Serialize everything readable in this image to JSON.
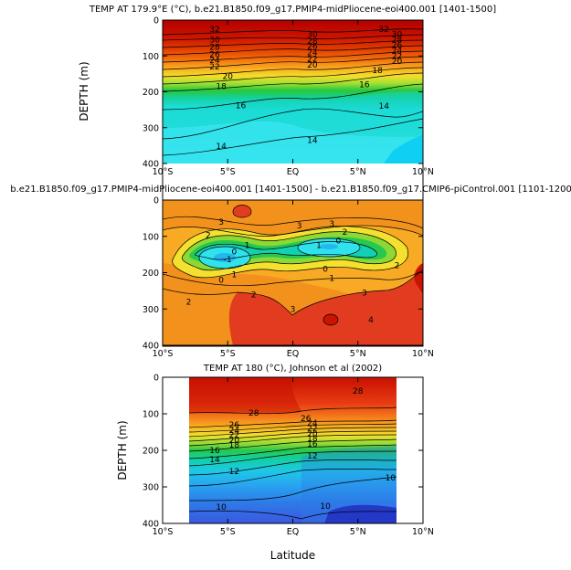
{
  "chart_data": [
    {
      "type": "contour",
      "title": "TEMP AT 179.9°E (°C), b.e21.B1850.f09_g17.PMIP4-midPliocene-eoi400.001 [1401-1500]",
      "xlabel": "",
      "ylabel": "DEPTH (m)",
      "x_ticks": [
        "10°S",
        "5°S",
        "EQ",
        "5°N",
        "10°N"
      ],
      "y_ticks": [
        "0",
        "100",
        "200",
        "300",
        "400"
      ],
      "xlim": [
        -10,
        10
      ],
      "ylim": [
        400,
        0
      ],
      "contour_labels": [
        {
          "text": "32",
          "x": -6.0,
          "y": 25
        },
        {
          "text": "32",
          "x": 7.0,
          "y": 25
        },
        {
          "text": "30",
          "x": -6.0,
          "y": 55
        },
        {
          "text": "30",
          "x": 1.5,
          "y": 40
        },
        {
          "text": "30",
          "x": 8.0,
          "y": 40
        },
        {
          "text": "28",
          "x": -6.0,
          "y": 75
        },
        {
          "text": "28",
          "x": 1.5,
          "y": 58
        },
        {
          "text": "28",
          "x": 8.0,
          "y": 55
        },
        {
          "text": "26",
          "x": -6.0,
          "y": 95
        },
        {
          "text": "26",
          "x": 1.5,
          "y": 72
        },
        {
          "text": "26",
          "x": 8.0,
          "y": 70
        },
        {
          "text": "24",
          "x": -6.0,
          "y": 112
        },
        {
          "text": "24",
          "x": 1.5,
          "y": 90
        },
        {
          "text": "24",
          "x": 8.0,
          "y": 85
        },
        {
          "text": "22",
          "x": -6.0,
          "y": 130
        },
        {
          "text": "22",
          "x": 1.5,
          "y": 108
        },
        {
          "text": "22",
          "x": 8.0,
          "y": 100
        },
        {
          "text": "20",
          "x": -5.0,
          "y": 157
        },
        {
          "text": "20",
          "x": 1.5,
          "y": 125
        },
        {
          "text": "20",
          "x": 8.0,
          "y": 115
        },
        {
          "text": "18",
          "x": -5.5,
          "y": 185
        },
        {
          "text": "18",
          "x": 6.5,
          "y": 140
        },
        {
          "text": "16",
          "x": -4.0,
          "y": 238
        },
        {
          "text": "16",
          "x": 5.5,
          "y": 180
        },
        {
          "text": "14",
          "x": -5.5,
          "y": 352
        },
        {
          "text": "14",
          "x": 1.5,
          "y": 335
        },
        {
          "text": "14",
          "x": 7.0,
          "y": 240
        }
      ]
    },
    {
      "type": "contour",
      "title": "b.e21.B1850.f09_g17.PMIP4-midPliocene-eoi400.001 [1401-1500] - b.e21.B1850.f09_g17.CMIP6-piControl.001 [1101-1200]",
      "xlabel": "",
      "ylabel": "",
      "x_ticks": [
        "10°S",
        "5°S",
        "EQ",
        "5°N",
        "10°N"
      ],
      "y_ticks": [
        "0",
        "100",
        "200",
        "300",
        "400"
      ],
      "xlim": [
        -10,
        10
      ],
      "ylim": [
        400,
        0
      ],
      "contour_labels": [
        {
          "text": "3",
          "x": -5.5,
          "y": 60
        },
        {
          "text": "3",
          "x": 0.5,
          "y": 70
        },
        {
          "text": "3",
          "x": 3.0,
          "y": 65
        },
        {
          "text": "2",
          "x": -6.5,
          "y": 97
        },
        {
          "text": "2",
          "x": 4.0,
          "y": 88
        },
        {
          "text": "1",
          "x": -3.5,
          "y": 125
        },
        {
          "text": "0",
          "x": -4.5,
          "y": 142
        },
        {
          "text": "0",
          "x": 3.5,
          "y": 112
        },
        {
          "text": "-1",
          "x": -5.0,
          "y": 163
        },
        {
          "text": "1",
          "x": 2.0,
          "y": 125
        },
        {
          "text": "0",
          "x": 2.5,
          "y": 190
        },
        {
          "text": "1",
          "x": 3.0,
          "y": 215
        },
        {
          "text": "1",
          "x": -4.5,
          "y": 205
        },
        {
          "text": "0",
          "x": -5.5,
          "y": 220
        },
        {
          "text": "2",
          "x": -3.0,
          "y": 260
        },
        {
          "text": "2",
          "x": -8.0,
          "y": 280
        },
        {
          "text": "3",
          "x": 0.0,
          "y": 300
        },
        {
          "text": "2",
          "x": 8.0,
          "y": 180
        },
        {
          "text": "3",
          "x": 5.5,
          "y": 255
        },
        {
          "text": "4",
          "x": 6.0,
          "y": 330
        }
      ]
    },
    {
      "type": "contour",
      "title": "TEMP AT 180 (°C), Johnson et al (2002)",
      "xlabel": "Latitude",
      "ylabel": "DEPTH (m)",
      "x_ticks": [
        "10°S",
        "5°S",
        "EQ",
        "5°N",
        "10°N"
      ],
      "y_ticks": [
        "0",
        "100",
        "200",
        "300",
        "400"
      ],
      "xlim": [
        -10,
        10
      ],
      "ylim": [
        400,
        0
      ],
      "data_xrange": [
        -8,
        8
      ],
      "contour_labels": [
        {
          "text": "28",
          "x": 5.0,
          "y": 38
        },
        {
          "text": "28",
          "x": -3.0,
          "y": 97
        },
        {
          "text": "26",
          "x": -4.5,
          "y": 130
        },
        {
          "text": "26",
          "x": 1.0,
          "y": 113
        },
        {
          "text": "24",
          "x": -4.5,
          "y": 145
        },
        {
          "text": "24",
          "x": 1.5,
          "y": 125
        },
        {
          "text": "22",
          "x": -4.5,
          "y": 158
        },
        {
          "text": "22",
          "x": 1.5,
          "y": 140
        },
        {
          "text": "20",
          "x": -4.5,
          "y": 172
        },
        {
          "text": "20",
          "x": 1.5,
          "y": 155
        },
        {
          "text": "18",
          "x": -4.5,
          "y": 185
        },
        {
          "text": "18",
          "x": 1.5,
          "y": 168
        },
        {
          "text": "16",
          "x": -6.0,
          "y": 200
        },
        {
          "text": "16",
          "x": 1.5,
          "y": 182
        },
        {
          "text": "14",
          "x": -6.0,
          "y": 225
        },
        {
          "text": "12",
          "x": -4.5,
          "y": 258
        },
        {
          "text": "12",
          "x": 1.5,
          "y": 215
        },
        {
          "text": "10",
          "x": -5.5,
          "y": 355
        },
        {
          "text": "10",
          "x": 2.5,
          "y": 352
        },
        {
          "text": "10",
          "x": 7.5,
          "y": 275
        }
      ]
    }
  ]
}
